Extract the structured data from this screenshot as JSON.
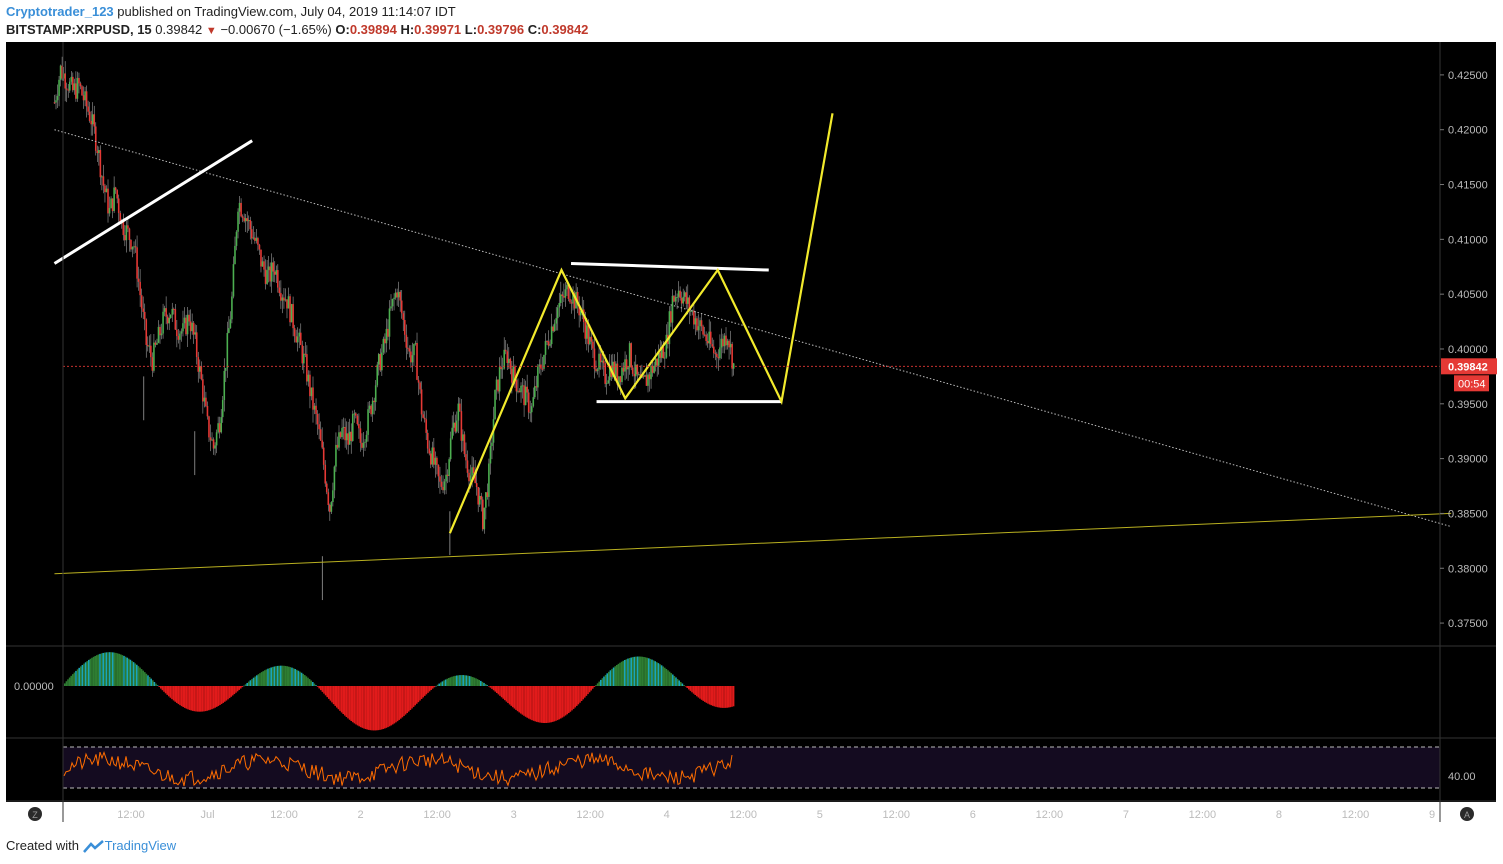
{
  "header": {
    "user": "Cryptotrader_123",
    "published_text": "published on TradingView.com, July 04, 2019 11:14:07 IDT",
    "symbol": "BITSTAMP:XRPUSD, 15",
    "last": "0.39842",
    "change": "−0.00670 (−1.65%)",
    "o_label": "O:",
    "o": "0.39894",
    "h_label": "H:",
    "h": "0.39971",
    "l_label": "L:",
    "l": "0.39796",
    "c_label": "C:",
    "c": "0.39842"
  },
  "footer": {
    "created_with": "Created with",
    "brand": "TradingView"
  },
  "colors": {
    "background": "#000000",
    "up": "#4caf50",
    "down": "#e53935",
    "trend_yellow": "#f2ea2c",
    "white_line": "#ffffff",
    "price_line": "#e53935",
    "osc_up": "#1aa6b8",
    "osc_up_dark": "#2e7d32",
    "osc_down": "#e11b1b",
    "rsi_line": "#ff6d00",
    "rsi_band": "#140b20"
  },
  "chart_data": {
    "type": "candlestick",
    "symbol": "BITSTAMP:XRPUSD",
    "interval": "15",
    "ylim": [
      0.373,
      0.428
    ],
    "y_ticks": [
      "0.42500",
      "0.42000",
      "0.41500",
      "0.41000",
      "0.40500",
      "0.40000",
      "0.39500",
      "0.39000",
      "0.38500",
      "0.38000",
      "0.37500"
    ],
    "x_ticks": [
      "12:00",
      "Jul",
      "12:00",
      "2",
      "12:00",
      "3",
      "12:00",
      "4",
      "12:00",
      "5",
      "12:00",
      "6",
      "12:00",
      "7",
      "12:00",
      "8",
      "12:00",
      "9"
    ],
    "x_tick_times_hours": [
      12,
      24,
      36,
      48,
      60,
      72,
      84,
      96,
      108,
      120,
      132,
      144,
      156,
      168,
      180,
      192,
      204,
      216
    ],
    "last_price_label": "0.39842",
    "countdown_label": "00:54",
    "last_price": 0.39842,
    "candle_closes": [
      0.4225,
      0.4255,
      0.4245,
      0.4235,
      0.424,
      0.4225,
      0.421,
      0.4185,
      0.415,
      0.4125,
      0.4145,
      0.4115,
      0.4105,
      0.4095,
      0.405,
      0.4005,
      0.399,
      0.401,
      0.403,
      0.4035,
      0.402,
      0.4015,
      0.403,
      0.4005,
      0.397,
      0.393,
      0.391,
      0.3935,
      0.399,
      0.4045,
      0.4135,
      0.4125,
      0.411,
      0.4095,
      0.4075,
      0.4065,
      0.4075,
      0.4055,
      0.4045,
      0.4025,
      0.4005,
      0.3985,
      0.3955,
      0.393,
      0.3895,
      0.3855,
      0.3905,
      0.3925,
      0.3915,
      0.3935,
      0.3915,
      0.393,
      0.3955,
      0.3985,
      0.4005,
      0.4035,
      0.4055,
      0.4025,
      0.3995,
      0.3995,
      0.3945,
      0.3915,
      0.3895,
      0.3875,
      0.3885,
      0.3925,
      0.3945,
      0.3905,
      0.3885,
      0.3875,
      0.3845,
      0.3885,
      0.3955,
      0.3985,
      0.3995,
      0.3975,
      0.3965,
      0.3955,
      0.3945,
      0.3975,
      0.3995,
      0.4015,
      0.4035,
      0.4045,
      0.4055,
      0.4045,
      0.4035,
      0.4015,
      0.3995,
      0.3985,
      0.3975,
      0.3985,
      0.3975,
      0.3985,
      0.3995,
      0.3975,
      0.3965,
      0.3975,
      0.3985,
      0.3995,
      0.4005,
      0.4045,
      0.4055,
      0.4045,
      0.4035,
      0.4025,
      0.4015,
      0.4005,
      0.3995,
      0.4005,
      0.4015,
      0.3985
    ],
    "candle_start_hour": 0,
    "candle_end_hour": 106.5,
    "trendlines": [
      {
        "name": "descending resistance",
        "style": "dotted",
        "color": "gray",
        "from": {
          "hour": 0,
          "price": 0.42
        },
        "to": {
          "hour": 219,
          "price": 0.3838
        }
      },
      {
        "name": "ascending support",
        "style": "solid thin",
        "color": "yellow",
        "from": {
          "hour": 0,
          "price": 0.3795
        },
        "to": {
          "hour": 219,
          "price": 0.385
        }
      },
      {
        "name": "white rising",
        "style": "solid thick",
        "color": "white",
        "from": {
          "hour": 0,
          "price": 0.4078
        },
        "to": {
          "hour": 31,
          "price": 0.419
        }
      },
      {
        "name": "white top",
        "style": "solid thick",
        "color": "white",
        "from": {
          "hour": 81,
          "price": 0.4078
        },
        "to": {
          "hour": 112,
          "price": 0.4072
        }
      },
      {
        "name": "white bottom",
        "style": "solid thick",
        "color": "white",
        "from": {
          "hour": 85,
          "price": 0.3952
        },
        "to": {
          "hour": 114,
          "price": 0.3952
        }
      }
    ],
    "pattern_path": [
      {
        "hour": 62,
        "price": 0.3832
      },
      {
        "hour": 79.5,
        "price": 0.4072
      },
      {
        "hour": 89.5,
        "price": 0.3955
      },
      {
        "hour": 104,
        "price": 0.4072
      },
      {
        "hour": 114,
        "price": 0.3952
      },
      {
        "hour": 122,
        "price": 0.4215
      }
    ],
    "oscillator": {
      "zero_label": "0.00000"
    },
    "rsi": {
      "label": "40.00",
      "upper": 70,
      "lower": 30
    }
  }
}
